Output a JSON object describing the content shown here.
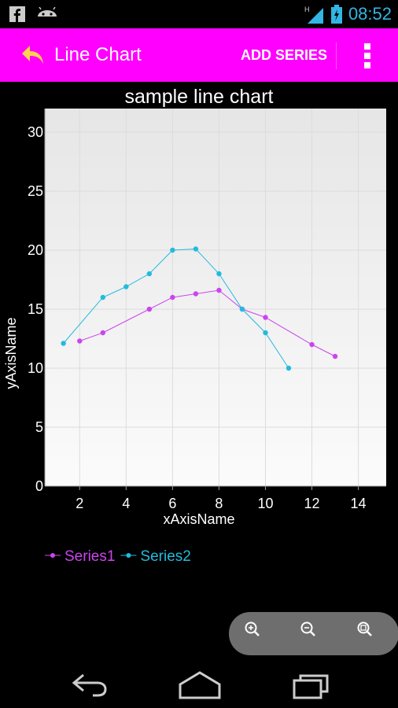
{
  "status_bar": {
    "time": "08:52",
    "icons": [
      "facebook-icon",
      "android-icon",
      "signal-icon",
      "battery-icon"
    ]
  },
  "action_bar": {
    "title": "Line Chart",
    "add_series_label": "ADD SERIES",
    "background": "#ff00ff"
  },
  "chart_data": {
    "type": "line",
    "title": "sample line chart",
    "xlabel": "xAxisName",
    "ylabel": "yAxisName",
    "xlim": [
      0.5,
      15.2
    ],
    "ylim": [
      0,
      32
    ],
    "x_ticks": [
      2,
      4,
      6,
      8,
      10,
      12,
      14
    ],
    "y_ticks": [
      0,
      5,
      10,
      15,
      20,
      25,
      30
    ],
    "grid": true,
    "legend_position": "bottom-left",
    "series": [
      {
        "name": "Series1",
        "color": "#cc44ee",
        "x": [
          2,
          3,
          5,
          6,
          7,
          8,
          9,
          10,
          12,
          13
        ],
        "y": [
          12.3,
          13,
          15,
          16,
          16.3,
          16.6,
          15,
          14.3,
          12,
          11
        ]
      },
      {
        "name": "Series2",
        "color": "#22bbdd",
        "x": [
          1.3,
          3,
          4,
          5,
          6,
          7,
          8,
          9,
          10,
          11
        ],
        "y": [
          12.1,
          16,
          16.9,
          18,
          20,
          20.1,
          18,
          15,
          13,
          10
        ]
      }
    ]
  },
  "zoom_controls": [
    "zoom-in-icon",
    "zoom-out-icon",
    "zoom-reset-icon"
  ],
  "nav_bar": [
    "back-nav-icon",
    "home-nav-icon",
    "recent-apps-icon"
  ]
}
